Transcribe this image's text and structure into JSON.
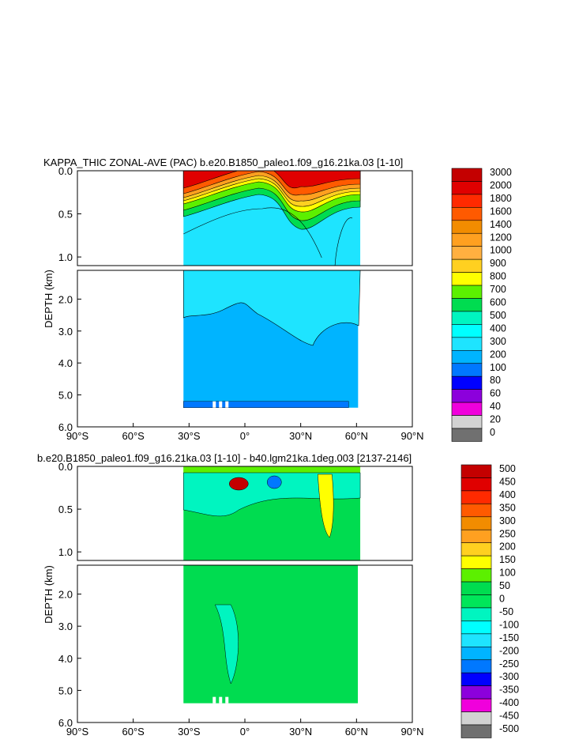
{
  "chart_data": [
    {
      "type": "heatmap",
      "title": "KAPPA_THIC ZONAL-AVE (PAC) b.e20.B1850_paleo1.f09_g16.21ka.03 [1-10]",
      "ylabel": "DEPTH (km)",
      "xlabel": "",
      "x_ticks": [
        "90°S",
        "60°S",
        "30°S",
        "0°",
        "30°N",
        "60°N",
        "90°N"
      ],
      "upper_y_ticks": [
        "0.0",
        "0.5",
        "1.0"
      ],
      "lower_y_ticks": [
        "2.0",
        "3.0",
        "4.0",
        "5.0",
        "6.0"
      ],
      "xlim": [
        -90,
        90
      ],
      "upper_ylim_km": [
        0,
        1.1
      ],
      "lower_ylim_km": [
        1.1,
        6.0
      ],
      "data_extent": {
        "lat_min": -33,
        "lat_max": 62,
        "depth_max_km": 5.4
      },
      "colorbar": {
        "labels": [
          "3000",
          "2000",
          "1800",
          "1600",
          "1400",
          "1200",
          "1000",
          "900",
          "800",
          "700",
          "600",
          "500",
          "400",
          "300",
          "200",
          "100",
          "80",
          "60",
          "40",
          "20",
          "0"
        ],
        "colors": [
          "#c40000",
          "#e00000",
          "#ff2a00",
          "#ff5a00",
          "#f28c00",
          "#ffa020",
          "#ffb040",
          "#ffd020",
          "#ffff00",
          "#5cf000",
          "#00dc50",
          "#00f5c0",
          "#00ffff",
          "#1ee4ff",
          "#00b4ff",
          "#0078ff",
          "#0000ff",
          "#8c00dc",
          "#f000dc",
          "#d2d2d2",
          "#707070"
        ]
      }
    },
    {
      "type": "heatmap",
      "title": "b.e20.B1850_paleo1.f09_g16.21ka.03 [1-10] - b40.lgm21ka.1deg.003 [2137-2146]",
      "ylabel": "DEPTH (km)",
      "xlabel": "",
      "x_ticks": [
        "90°S",
        "60°S",
        "30°S",
        "0°",
        "30°N",
        "60°N",
        "90°N"
      ],
      "upper_y_ticks": [
        "0.0",
        "0.5",
        "1.0"
      ],
      "lower_y_ticks": [
        "2.0",
        "3.0",
        "4.0",
        "5.0",
        "6.0"
      ],
      "xlim": [
        -90,
        90
      ],
      "upper_ylim_km": [
        0,
        1.1
      ],
      "lower_ylim_km": [
        1.1,
        6.0
      ],
      "data_extent": {
        "lat_min": -33,
        "lat_max": 62,
        "depth_max_km": 5.4
      },
      "colorbar": {
        "labels": [
          "500",
          "450",
          "400",
          "350",
          "300",
          "250",
          "200",
          "150",
          "100",
          "50",
          "0",
          "-50",
          "-100",
          "-150",
          "-200",
          "-250",
          "-300",
          "-350",
          "-400",
          "-450",
          "-500"
        ],
        "colors": [
          "#c40000",
          "#e00000",
          "#ff2a00",
          "#ff5a00",
          "#f28c00",
          "#ffa020",
          "#ffd020",
          "#ffff00",
          "#5cf000",
          "#00dc50",
          "#00e65a",
          "#00f5c0",
          "#00ffff",
          "#1ee4ff",
          "#00b4ff",
          "#0078ff",
          "#0000ff",
          "#8c00dc",
          "#f000dc",
          "#d2d2d2",
          "#707070"
        ]
      }
    }
  ]
}
